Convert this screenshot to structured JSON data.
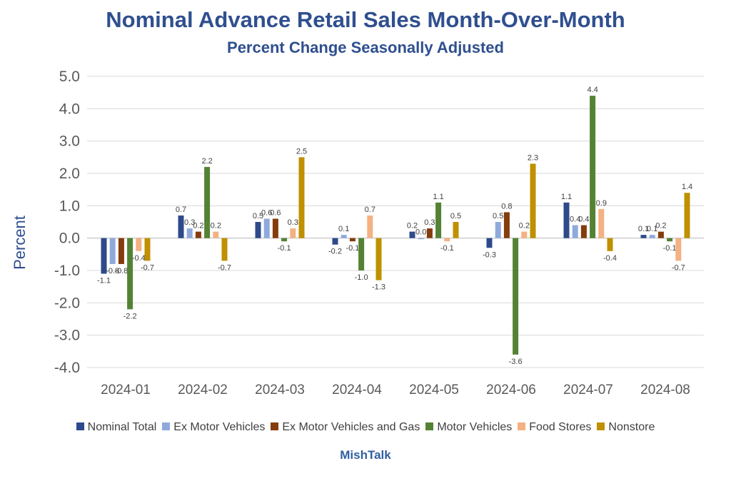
{
  "credit": "MishTalk",
  "chart_data": {
    "type": "bar",
    "title": "Nominal Advance Retail Sales Month-Over-Month",
    "subtitle": "Percent Change Seasonally Adjusted",
    "ylabel": "Percent",
    "xlabel": "",
    "ylim": [
      -4.0,
      5.0
    ],
    "yticks": [
      "5.0",
      "4.0",
      "3.0",
      "2.0",
      "1.0",
      "0.0",
      "-1.0",
      "-2.0",
      "-3.0",
      "-4.0"
    ],
    "grid": true,
    "legend_position": "bottom",
    "categories": [
      "2024-01",
      "2024-02",
      "2024-03",
      "2024-04",
      "2024-05",
      "2024-06",
      "2024-07",
      "2024-08"
    ],
    "series": [
      {
        "name": "Nominal Total",
        "color": "#2e4a8b",
        "values": [
          -1.1,
          0.7,
          0.5,
          -0.2,
          0.2,
          -0.3,
          1.1,
          0.1
        ],
        "labels": [
          "-1.1",
          "0.7",
          "0.5",
          "-0.2",
          "0.2",
          "-0.3",
          "1.1",
          "0.1"
        ]
      },
      {
        "name": "Ex Motor Vehicles",
        "color": "#8fa9dc",
        "values": [
          -0.8,
          0.3,
          0.6,
          0.1,
          0.0,
          0.5,
          0.4,
          0.1
        ],
        "labels": [
          "-0.8",
          "0.3",
          "0.6",
          "0.1",
          "0.0",
          "0.5",
          "0.4",
          "0.1"
        ]
      },
      {
        "name": "Ex Motor Vehicles and Gas",
        "color": "#843c0c",
        "values": [
          -0.8,
          0.2,
          0.6,
          -0.1,
          0.3,
          0.8,
          0.4,
          0.2
        ],
        "labels": [
          "-0.8",
          "0.2",
          "0.6",
          "-0.1",
          "0.3",
          "0.8",
          "0.4",
          "0.2"
        ]
      },
      {
        "name": "Motor Vehicles",
        "color": "#548235",
        "values": [
          -2.2,
          2.2,
          -0.1,
          -1.0,
          1.1,
          -3.6,
          4.4,
          -0.1
        ],
        "labels": [
          "-2.2",
          "2.2",
          "-0.1",
          "-1.0",
          "1.1",
          "-3.6",
          "4.4",
          "-0.1"
        ]
      },
      {
        "name": "Food Stores",
        "color": "#f4b183",
        "values": [
          -0.4,
          0.2,
          0.3,
          0.7,
          -0.1,
          0.2,
          0.9,
          -0.7
        ],
        "labels": [
          "-0.4",
          "0.2",
          "0.3",
          "0.7",
          "-0.1",
          "0.2",
          "0.9",
          "-0.7"
        ]
      },
      {
        "name": "Nonstore",
        "color": "#bf9000",
        "values": [
          -0.7,
          -0.7,
          2.5,
          -1.3,
          0.5,
          2.3,
          -0.4,
          1.4
        ],
        "labels": [
          "-0.7",
          "-0.7",
          "2.5",
          "-1.3",
          "0.5",
          "2.3",
          "-0.4",
          "1.4"
        ]
      }
    ]
  }
}
